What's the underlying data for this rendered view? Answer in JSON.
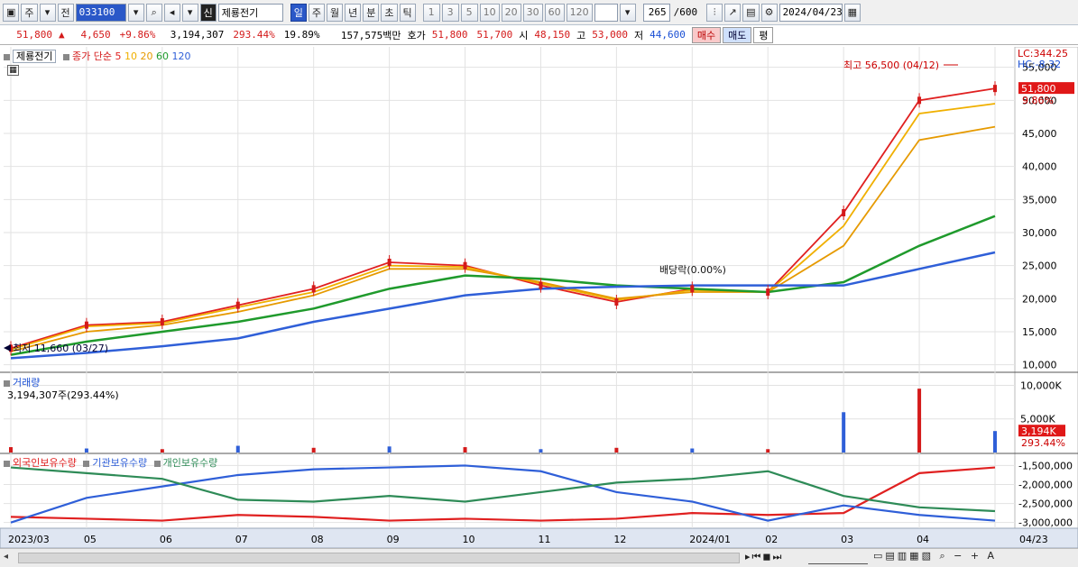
{
  "toolbar": {
    "period_jump": "주",
    "prev_label": "전",
    "code": "033100",
    "badge": "신",
    "stock_name": "제룡전기",
    "intervals": [
      "일",
      "주",
      "월",
      "년",
      "분",
      "초",
      "틱"
    ],
    "numbers": [
      "1",
      "3",
      "5",
      "10",
      "20",
      "30",
      "60",
      "120"
    ],
    "count": "265",
    "count_total": "/600",
    "date": "2024/04/23"
  },
  "quote": {
    "price": "51,800",
    "arrow": "▲",
    "change": "4,650",
    "change_pct": "+9.86%",
    "volume": "3,194,307",
    "vol_ratio": "293.44%",
    "turnover": "19.89%",
    "amount": "157,575백만",
    "hoga_label": "호가",
    "ask": "51,800",
    "bid": "51,700",
    "open_label": "시",
    "open": "48,150",
    "high_label": "고",
    "high": "53,000",
    "low_label": "저",
    "low": "44,600",
    "buy": "매수",
    "sell": "매도",
    "avg": "평"
  },
  "legend": {
    "name": "제룡전기",
    "ma_title": "종가 단순",
    "ma_periods": [
      "5",
      "10",
      "20",
      "60",
      "120"
    ],
    "ma_colors": [
      "#e02020",
      "#f0b000",
      "#e69a00",
      "#1f9a2c",
      "#2f5fd8"
    ]
  },
  "price_panel": {
    "lc": "LC:344.25",
    "hc": "HC:-8.32",
    "last_price_tag": "51,800",
    "last_pct_tag": "9.86%",
    "high_note": "최고 56,500 (04/12)",
    "low_note": "최저 11,660 (03/27)",
    "dividend_note": "배당락(0.00%)",
    "y_ticks": [
      "55,000",
      "50,000",
      "45,000",
      "40,000",
      "35,000",
      "30,000",
      "25,000",
      "20,000",
      "15,000",
      "10,000"
    ]
  },
  "volume_panel": {
    "title": "거래량",
    "readout": "3,194,307주(293.44%)",
    "y_ticks": [
      "10,000K",
      "5,000K"
    ],
    "last_tag": "3,194K",
    "pct_tag": "293.44%"
  },
  "holdings_panel": {
    "series": [
      "외국인보유수량",
      "기관보유수량",
      "개인보유수량"
    ],
    "colors": [
      "#e02020",
      "#2f5fd8",
      "#2e8b57"
    ],
    "y_ticks": [
      "-1,500,000",
      "-2,000,000",
      "-2,500,000",
      "-3,000,000"
    ]
  },
  "x_axis": [
    "2023/03",
    "05",
    "06",
    "07",
    "08",
    "09",
    "10",
    "11",
    "12",
    "2024/01",
    "02",
    "03",
    "04",
    "04/23"
  ],
  "chart_data": {
    "type": "line",
    "x": [
      "2023/03",
      "05",
      "06",
      "07",
      "08",
      "09",
      "10",
      "11",
      "12",
      "2024/01",
      "02",
      "03",
      "04",
      "04/23"
    ],
    "series": [
      {
        "name": "5",
        "values": [
          12500,
          16000,
          16500,
          19000,
          21500,
          25500,
          25000,
          22000,
          19500,
          21500,
          21000,
          33000,
          50000,
          51800
        ]
      },
      {
        "name": "10",
        "values": [
          12300,
          15800,
          16300,
          18700,
          21000,
          25000,
          24800,
          22300,
          19800,
          21300,
          21000,
          31000,
          48000,
          49500
        ]
      },
      {
        "name": "20",
        "values": [
          12000,
          15000,
          16000,
          18000,
          20500,
          24500,
          24500,
          22500,
          20000,
          21000,
          21000,
          28000,
          44000,
          46000
        ]
      },
      {
        "name": "60",
        "values": [
          11500,
          13500,
          15000,
          16500,
          18500,
          21500,
          23500,
          23000,
          22000,
          21500,
          21000,
          22500,
          28000,
          32500
        ]
      },
      {
        "name": "120",
        "values": [
          11000,
          11800,
          12800,
          14000,
          16500,
          18500,
          20500,
          21500,
          21800,
          22000,
          22000,
          22000,
          24500,
          27000
        ]
      }
    ],
    "ylim": [
      9000,
      57000
    ],
    "volume_k": [
      800,
      600,
      500,
      1000,
      700,
      900,
      800,
      500,
      700,
      600,
      500,
      6000,
      9500,
      3194
    ],
    "volume_ylim": [
      0,
      11000
    ],
    "holdings": {
      "외국인보유수량": [
        -2850000,
        -2900000,
        -2950000,
        -2800000,
        -2850000,
        -2950000,
        -2900000,
        -2950000,
        -2900000,
        -2750000,
        -2800000,
        -2750000,
        -1700000,
        -1550000
      ],
      "기관보유수량": [
        -3000000,
        -2350000,
        -2050000,
        -1750000,
        -1600000,
        -1550000,
        -1500000,
        -1650000,
        -2200000,
        -2450000,
        -2950000,
        -2550000,
        -2800000,
        -2950000
      ],
      "개인보유수량": [
        -1550000,
        -1700000,
        -1850000,
        -2400000,
        -2450000,
        -2300000,
        -2450000,
        -2200000,
        -1950000,
        -1850000,
        -1650000,
        -2300000,
        -2600000,
        -2700000
      ]
    },
    "holdings_ylim": [
      -3150000,
      -1300000
    ]
  }
}
